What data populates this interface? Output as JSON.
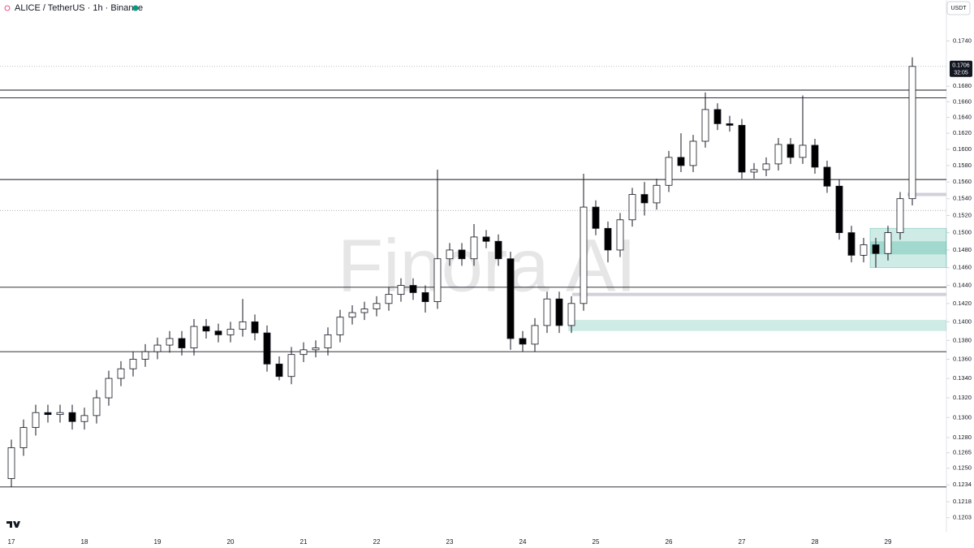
{
  "chart_data": {
    "type": "candlestick",
    "title": "ALICE / TetherUS · 1h · Binance",
    "currency": "USDT",
    "watermark": "Finora AI",
    "log_scale": true,
    "up_color": "#ffffff",
    "down_color": "#000000",
    "categories": [
      "17",
      null,
      null,
      null,
      null,
      null,
      "18",
      null,
      null,
      null,
      null,
      null,
      "19",
      null,
      null,
      null,
      null,
      null,
      "20",
      null,
      null,
      null,
      null,
      null,
      "21",
      null,
      null,
      null,
      null,
      null,
      "22",
      null,
      null,
      null,
      null,
      null,
      "23",
      null,
      null,
      null,
      null,
      null,
      "24",
      null,
      null,
      null,
      null,
      null,
      "25",
      null,
      null,
      null,
      null,
      null,
      "26",
      null,
      null,
      null,
      null,
      null,
      "27",
      null,
      null,
      null,
      null,
      null,
      "28",
      null,
      null,
      null,
      null,
      null,
      "29",
      null,
      null
    ],
    "open": [
      0.124,
      0.127,
      0.129,
      0.1305,
      0.1303,
      0.1305,
      0.1296,
      0.1302,
      0.132,
      0.134,
      0.135,
      0.136,
      0.1368,
      0.1375,
      0.1382,
      0.1372,
      0.1395,
      0.139,
      0.1386,
      0.1392,
      0.14,
      0.1388,
      0.1355,
      0.1342,
      0.1365,
      0.137,
      0.1372,
      0.1386,
      0.1405,
      0.141,
      0.1414,
      0.142,
      0.143,
      0.144,
      0.1432,
      0.1422,
      0.147,
      0.148,
      0.147,
      0.1495,
      0.149,
      0.147,
      0.1382,
      0.1376,
      0.1396,
      0.1425,
      0.1396,
      0.142,
      0.153,
      0.1505,
      0.148,
      0.1515,
      0.1545,
      0.1535,
      0.1556,
      0.159,
      0.158,
      0.161,
      0.165,
      0.1632,
      0.163,
      0.1572,
      0.1575,
      0.1582,
      0.1606,
      0.159,
      0.1605,
      0.1578,
      0.1555,
      0.15,
      0.1474,
      0.1486,
      0.1476,
      0.15,
      0.154
    ],
    "high": [
      0.1278,
      0.1298,
      0.1313,
      0.1313,
      0.1313,
      0.1313,
      0.131,
      0.1328,
      0.1348,
      0.1358,
      0.1368,
      0.1376,
      0.1383,
      0.139,
      0.139,
      0.1403,
      0.1403,
      0.1398,
      0.14,
      0.1425,
      0.1408,
      0.1396,
      0.1363,
      0.1373,
      0.1378,
      0.138,
      0.1394,
      0.1413,
      0.1418,
      0.1422,
      0.1428,
      0.1438,
      0.1448,
      0.1448,
      0.144,
      0.1575,
      0.1488,
      0.1488,
      0.151,
      0.1503,
      0.1498,
      0.1478,
      0.139,
      0.1404,
      0.1433,
      0.1433,
      0.1428,
      0.157,
      0.1538,
      0.1513,
      0.1523,
      0.1553,
      0.156,
      0.1564,
      0.1598,
      0.162,
      0.1618,
      0.1672,
      0.1658,
      0.1642,
      0.1638,
      0.1583,
      0.159,
      0.1614,
      0.1614,
      0.1668,
      0.1613,
      0.1586,
      0.1563,
      0.1508,
      0.1494,
      0.1494,
      0.1508,
      0.1548,
      0.1718
    ],
    "low": [
      0.1232,
      0.1262,
      0.1282,
      0.1295,
      0.1295,
      0.1288,
      0.1288,
      0.1294,
      0.1312,
      0.1332,
      0.1342,
      0.1352,
      0.136,
      0.1367,
      0.1364,
      0.1364,
      0.1382,
      0.1378,
      0.1378,
      0.1384,
      0.138,
      0.1347,
      0.1338,
      0.1334,
      0.1357,
      0.1362,
      0.1364,
      0.1378,
      0.1397,
      0.1402,
      0.1406,
      0.1412,
      0.1422,
      0.1424,
      0.141,
      0.1414,
      0.1462,
      0.1462,
      0.1462,
      0.1482,
      0.1462,
      0.137,
      0.1368,
      0.1368,
      0.1388,
      0.1388,
      0.1388,
      0.1412,
      0.1497,
      0.1466,
      0.1472,
      0.1507,
      0.152,
      0.1527,
      0.1548,
      0.1572,
      0.1572,
      0.1602,
      0.1624,
      0.1622,
      0.1564,
      0.1564,
      0.1567,
      0.1574,
      0.1582,
      0.1582,
      0.157,
      0.1547,
      0.1492,
      0.1466,
      0.1466,
      0.146,
      0.1468,
      0.1492,
      0.1532
    ],
    "close": [
      0.127,
      0.129,
      0.1305,
      0.1303,
      0.1305,
      0.1296,
      0.1302,
      0.132,
      0.134,
      0.135,
      0.136,
      0.1368,
      0.1375,
      0.1382,
      0.1372,
      0.1395,
      0.139,
      0.1386,
      0.1392,
      0.14,
      0.1388,
      0.1355,
      0.1342,
      0.1365,
      0.137,
      0.1372,
      0.1386,
      0.1405,
      0.141,
      0.1414,
      0.142,
      0.143,
      0.144,
      0.1432,
      0.1422,
      0.147,
      0.148,
      0.147,
      0.1495,
      0.149,
      0.147,
      0.1382,
      0.1376,
      0.1396,
      0.1425,
      0.1396,
      0.142,
      0.153,
      0.1505,
      0.148,
      0.1515,
      0.1545,
      0.1535,
      0.1556,
      0.159,
      0.158,
      0.161,
      0.165,
      0.1632,
      0.163,
      0.1572,
      0.1575,
      0.1582,
      0.1606,
      0.159,
      0.1605,
      0.1578,
      0.1555,
      0.15,
      0.1474,
      0.1486,
      0.1476,
      0.15,
      0.154,
      0.1706
    ],
    "ylim": [
      0.119,
      0.1796
    ],
    "yticks": [
      {
        "value": 0.174,
        "label": "0.1740"
      },
      {
        "value": 0.168,
        "label": "0.1680"
      },
      {
        "value": 0.166,
        "label": "0.1660"
      },
      {
        "value": 0.164,
        "label": "0.1640"
      },
      {
        "value": 0.162,
        "label": "0.1620"
      },
      {
        "value": 0.16,
        "label": "0.1600"
      },
      {
        "value": 0.158,
        "label": "0.1580"
      },
      {
        "value": 0.156,
        "label": "0.1560"
      },
      {
        "value": 0.154,
        "label": "0.1540"
      },
      {
        "value": 0.152,
        "label": "0.1520"
      },
      {
        "value": 0.15,
        "label": "0.1500"
      },
      {
        "value": 0.148,
        "label": "0.1480"
      },
      {
        "value": 0.146,
        "label": "0.1460"
      },
      {
        "value": 0.144,
        "label": "0.1440"
      },
      {
        "value": 0.142,
        "label": "0.1420"
      },
      {
        "value": 0.14,
        "label": "0.1400"
      },
      {
        "value": 0.138,
        "label": "0.1380"
      },
      {
        "value": 0.136,
        "label": "0.1360"
      },
      {
        "value": 0.134,
        "label": "0.1340"
      },
      {
        "value": 0.132,
        "label": "0.1320"
      },
      {
        "value": 0.13,
        "label": "0.1300"
      },
      {
        "value": 0.128,
        "label": "0.1280"
      },
      0.1265,
      {
        "value": 0.125,
        "label": "0.1250"
      },
      0.1234,
      0.1218,
      0.1203
    ],
    "levels": [
      0.1675,
      0.1665,
      0.1563,
      0.1438,
      0.1368,
      0.1232
    ],
    "dotted_levels": [
      0.1706,
      0.1526
    ],
    "gray_zones": [
      0.143,
      0.1545
    ],
    "zones": [
      {
        "low": 0.139,
        "high": 0.1402
      },
      {
        "low": 0.146,
        "high": 0.1505
      },
      {
        "low": 0.1475,
        "high": 0.149
      }
    ],
    "last_price": {
      "value": 0.1706,
      "countdown": "32:05"
    }
  }
}
